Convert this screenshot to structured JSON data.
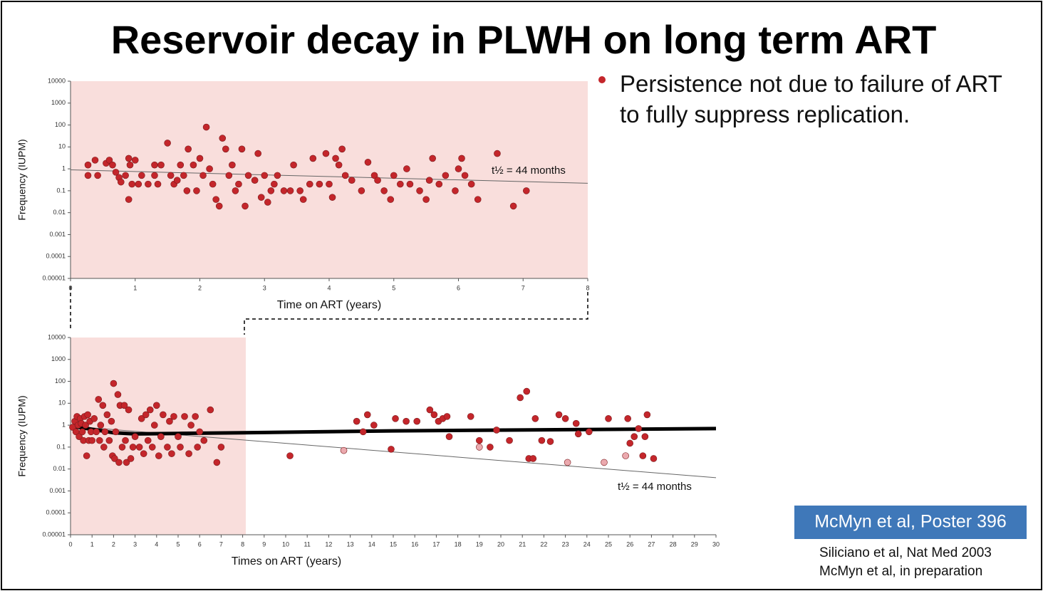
{
  "title": "Reservoir decay in PLWH on long term ART",
  "bullet": "Persistence not due to failure of ART to fully suppress replication.",
  "callout": "McMyn et al, Poster 396",
  "references": [
    "Siliciano et al, Nat Med 2003",
    "McMyn et al, in preparation"
  ],
  "chart_data": [
    {
      "type": "scatter",
      "x_label": "Time on ART (years)",
      "y_label": "Frequency (IUPM)",
      "annotation": "t½ = 44 months",
      "log_y": true,
      "ylim": [
        1e-05,
        10000
      ],
      "yticks": [
        1e-05,
        0.0001,
        0.001,
        0.01,
        0.1,
        1,
        10,
        100,
        1000,
        10000
      ],
      "xlim": [
        0,
        8
      ],
      "xticks": [
        0,
        1,
        2,
        3,
        4,
        5,
        6,
        7,
        8
      ],
      "series": [
        {
          "color": "#c4262b",
          "x": [
            0.27,
            0.27,
            0.38,
            0.42,
            0.55,
            0.6,
            0.65,
            0.7,
            0.75,
            0.78,
            0.85,
            0.9,
            0.9,
            0.92,
            0.95,
            1.0,
            1.05,
            1.1,
            1.2,
            1.3,
            1.3,
            1.35,
            1.4,
            1.5,
            1.55,
            1.6,
            1.65,
            1.7,
            1.75,
            1.8,
            1.82,
            1.9,
            1.95,
            2.0,
            2.05,
            2.1,
            2.15,
            2.2,
            2.25,
            2.3,
            2.35,
            2.4,
            2.45,
            2.5,
            2.55,
            2.6,
            2.65,
            2.7,
            2.75,
            2.85,
            2.9,
            2.95,
            3.0,
            3.05,
            3.1,
            3.15,
            3.2,
            3.3,
            3.4,
            3.45,
            3.55,
            3.6,
            3.7,
            3.75,
            3.85,
            3.95,
            4.0,
            4.05,
            4.1,
            4.15,
            4.2,
            4.25,
            4.35,
            4.5,
            4.6,
            4.7,
            4.75,
            4.85,
            4.95,
            5.0,
            5.1,
            5.2,
            5.25,
            5.4,
            5.5,
            5.55,
            5.6,
            5.7,
            5.8,
            5.95,
            6.0,
            6.05,
            6.1,
            6.2,
            6.3,
            6.6,
            6.85,
            7.05
          ],
          "values": [
            1.5,
            0.5,
            2.5,
            0.5,
            1.8,
            2.5,
            1.5,
            0.7,
            0.4,
            0.25,
            0.5,
            0.04,
            3,
            1.5,
            0.2,
            2.5,
            0.2,
            0.5,
            0.2,
            0.5,
            1.5,
            0.2,
            1.5,
            15,
            0.5,
            0.2,
            0.3,
            1.5,
            0.5,
            0.1,
            8,
            1.5,
            0.1,
            3,
            0.5,
            80,
            1,
            0.2,
            0.04,
            0.02,
            25,
            8,
            0.5,
            1.5,
            0.1,
            0.2,
            8,
            0.02,
            0.5,
            0.3,
            5,
            0.05,
            0.5,
            0.03,
            0.1,
            0.2,
            0.5,
            0.1,
            0.1,
            1.5,
            0.1,
            0.04,
            0.2,
            3,
            0.2,
            5,
            0.2,
            0.05,
            3,
            1.5,
            8,
            0.5,
            0.3,
            0.1,
            2,
            0.5,
            0.3,
            0.1,
            0.04,
            0.5,
            0.2,
            1,
            0.2,
            0.1,
            0.04,
            0.3,
            3,
            0.2,
            0.5,
            0.1,
            1,
            3,
            0.5,
            0.2,
            0.04,
            5,
            0.02,
            0.1
          ]
        }
      ],
      "lines": [
        {
          "color": "#666666",
          "width": 1,
          "x": [
            0,
            8
          ],
          "values": [
            0.9,
            0.22
          ]
        }
      ]
    },
    {
      "type": "scatter",
      "x_label": "Times on ART (years)",
      "y_label": "Frequency (IUPM)",
      "annotation": "t½ = 44 months",
      "log_y": true,
      "ylim": [
        1e-05,
        10000
      ],
      "yticks": [
        1e-05,
        0.0001,
        0.001,
        0.01,
        0.1,
        1,
        10,
        100,
        1000,
        10000
      ],
      "xlim": [
        0,
        30
      ],
      "xticks": [
        0,
        1,
        2,
        3,
        4,
        5,
        6,
        7,
        8,
        9,
        10,
        11,
        12,
        13,
        14,
        15,
        16,
        17,
        18,
        19,
        20,
        21,
        22,
        23,
        24,
        25,
        26,
        27,
        28,
        29,
        30
      ],
      "series": [
        {
          "color": "#c4262b",
          "x": [
            0.1,
            0.2,
            0.25,
            0.3,
            0.35,
            0.4,
            0.45,
            0.5,
            0.55,
            0.6,
            0.65,
            0.7,
            0.75,
            0.8,
            0.85,
            0.9,
            0.95,
            1.0,
            1.1,
            1.2,
            1.3,
            1.35,
            1.4,
            1.5,
            1.55,
            1.6,
            1.7,
            1.8,
            1.9,
            1.95,
            2.0,
            2.05,
            2.1,
            2.2,
            2.25,
            2.3,
            2.4,
            2.5,
            2.55,
            2.6,
            2.7,
            2.8,
            2.9,
            3.0,
            3.2,
            3.3,
            3.4,
            3.5,
            3.6,
            3.7,
            3.8,
            3.9,
            4.0,
            4.1,
            4.2,
            4.3,
            4.5,
            4.6,
            4.7,
            4.8,
            5.0,
            5.1,
            5.3,
            5.5,
            5.6,
            5.8,
            5.9,
            6.0,
            6.2,
            6.5,
            6.8,
            7.0,
            10.2,
            13.3,
            13.6,
            13.8,
            14.1,
            14.9,
            15.1,
            15.6,
            16.1,
            16.7,
            16.9,
            17.1,
            17.3,
            17.5,
            17.6,
            18.6,
            19.0,
            19.5,
            19.8,
            20.4,
            20.9,
            21.2,
            21.3,
            21.5,
            21.6,
            21.9,
            22.3,
            22.7,
            23.0,
            23.5,
            23.6,
            24.1,
            25.0,
            25.9,
            26.0,
            26.2,
            26.4,
            26.6,
            26.7,
            26.8,
            27.1
          ],
          "values": [
            0.8,
            1.5,
            0.5,
            2.5,
            1,
            0.3,
            2,
            1.2,
            0.5,
            0.2,
            2.5,
            1,
            0.04,
            3,
            0.2,
            1.5,
            0.5,
            0.2,
            2,
            0.5,
            15,
            0.2,
            1,
            8,
            0.1,
            0.5,
            3,
            0.2,
            1.5,
            0.04,
            80,
            0.03,
            0.5,
            25,
            0.02,
            8,
            0.1,
            8,
            0.2,
            0.02,
            5,
            0.03,
            0.1,
            0.3,
            0.1,
            2,
            0.05,
            3,
            0.2,
            5,
            0.1,
            1,
            8,
            0.04,
            0.3,
            3,
            0.1,
            1.5,
            0.05,
            2.5,
            0.3,
            0.1,
            2.5,
            0.05,
            1,
            2.5,
            0.1,
            0.5,
            0.2,
            5,
            0.02,
            0.1,
            0.04,
            1.5,
            0.5,
            3,
            1,
            0.08,
            2,
            1.5,
            1.5,
            5,
            3,
            1.5,
            2,
            2.5,
            0.3,
            2.5,
            0.2,
            0.1,
            0.6,
            0.2,
            18,
            35,
            0.03,
            0.03,
            2,
            0.2,
            0.18,
            3,
            2,
            1.2,
            0.4,
            0.5,
            2,
            2,
            0.15,
            0.3,
            0.7,
            0.04,
            0.3,
            3,
            0.03
          ]
        },
        {
          "color": "#eba9ae",
          "x": [
            12.7,
            19.0,
            23.1,
            24.8,
            25.8
          ],
          "values": [
            0.07,
            0.1,
            0.02,
            0.02,
            0.04
          ]
        }
      ],
      "lines": [
        {
          "color": "#666666",
          "width": 1,
          "x": [
            0,
            30
          ],
          "values": [
            0.9,
            0.004
          ]
        },
        {
          "color": "#000000",
          "width": 5,
          "x": [
            0,
            1,
            2,
            3,
            5,
            8,
            15,
            30
          ],
          "values": [
            0.9,
            0.65,
            0.45,
            0.4,
            0.42,
            0.45,
            0.55,
            0.7
          ]
        }
      ]
    }
  ]
}
